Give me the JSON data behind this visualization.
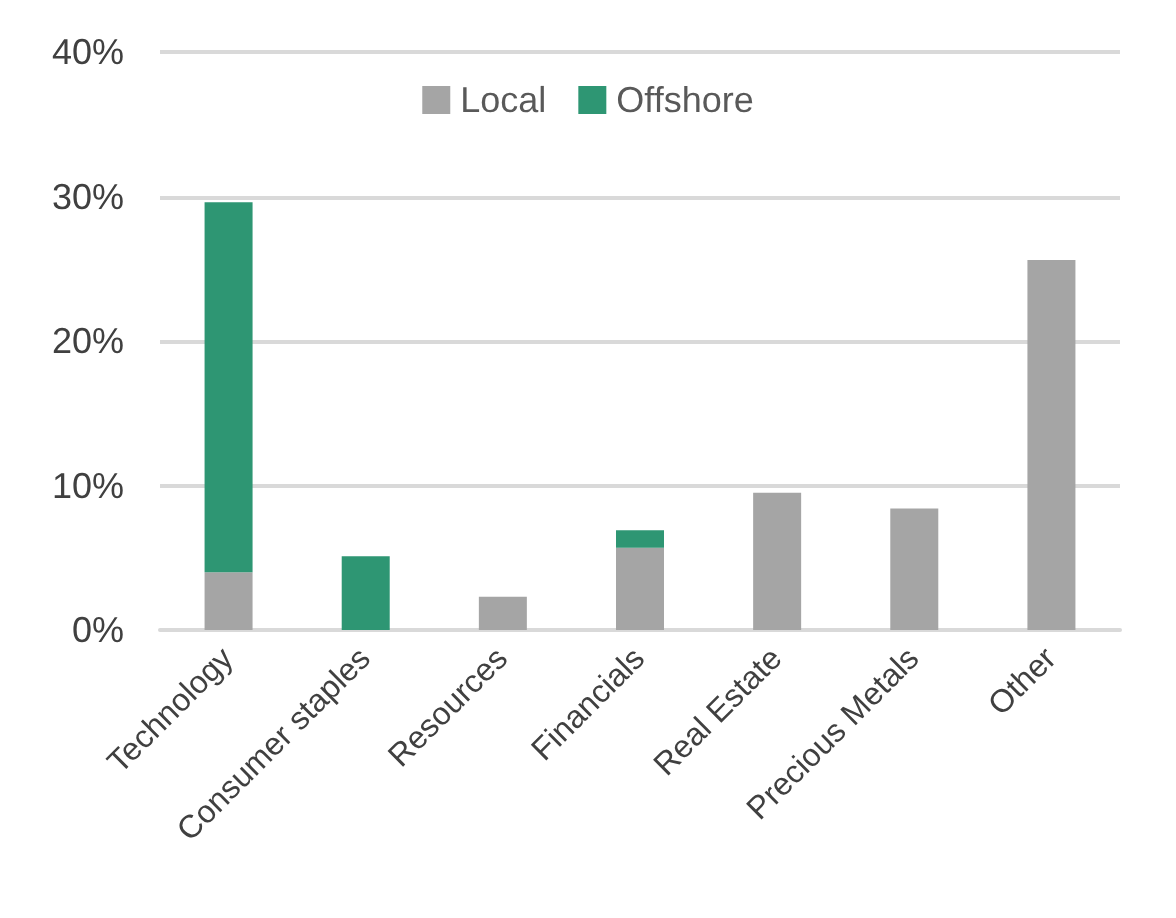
{
  "chart_data": {
    "type": "bar",
    "stacked": true,
    "categories": [
      "Technology",
      "Consumer staples",
      "Resources",
      "Financials",
      "Real Estate",
      "Precious Metals",
      "Other"
    ],
    "series": [
      {
        "name": "Local",
        "color": "#a5a5a5",
        "values": [
          4.0,
          0,
          2.3,
          5.7,
          9.5,
          8.4,
          25.6
        ]
      },
      {
        "name": "Offshore",
        "color": "#2e9673",
        "values": [
          25.6,
          5.1,
          0,
          1.2,
          0,
          0,
          0
        ]
      }
    ],
    "ylim": [
      0,
      40
    ],
    "yticks": [
      {
        "value": 0,
        "label": "0%"
      },
      {
        "value": 10,
        "label": "10%"
      },
      {
        "value": 20,
        "label": "20%"
      },
      {
        "value": 30,
        "label": "30%"
      },
      {
        "value": 40,
        "label": "40%"
      }
    ],
    "grid": "y",
    "legend": "top"
  }
}
